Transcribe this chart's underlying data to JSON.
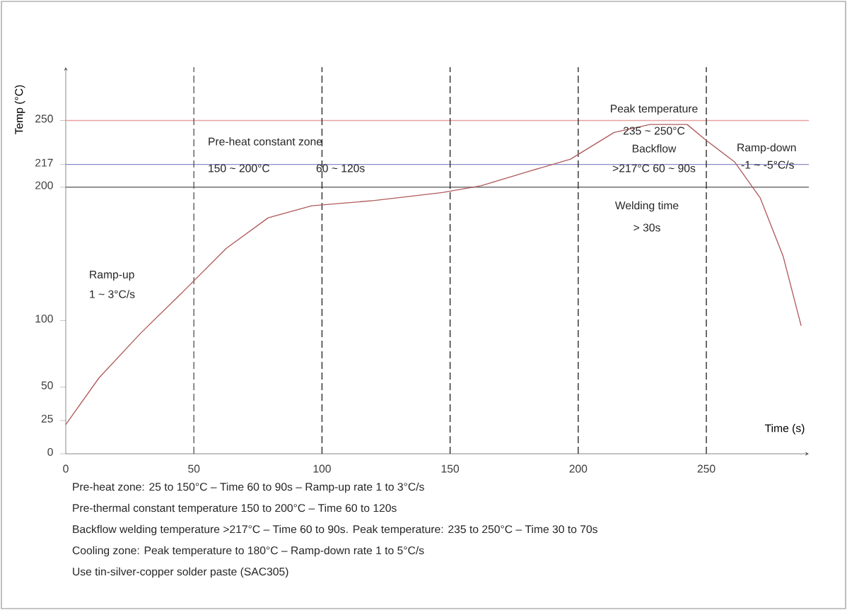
{
  "chart_data": {
    "type": "line",
    "xlabel": "Time (s)",
    "ylabel": "Temp (°C)",
    "xlim": [
      0,
      290
    ],
    "ylim": [
      0,
      290
    ],
    "xticks": [
      0,
      50,
      100,
      150,
      200,
      250
    ],
    "yticks": [
      0,
      25,
      50,
      100,
      200,
      217,
      250
    ],
    "grid": false,
    "marker": "none",
    "line_style": "solid",
    "x": [
      0,
      13,
      29.5,
      46,
      62.6,
      79,
      96,
      120.5,
      147,
      162,
      181,
      197,
      214,
      228,
      242.5,
      250,
      261,
      271,
      280,
      287
    ],
    "series": [
      {
        "color": "#b05a5a",
        "values": [
          22,
          57,
          91,
          122,
          154,
          177,
          186,
          190,
          196,
          201,
          212,
          221,
          241,
          247,
          247,
          235,
          219,
          192,
          148,
          96
        ]
      }
    ],
    "ref_lines": [
      {
        "axis": "y",
        "value": 250,
        "color": "#e8a0a0",
        "line_style": "solid"
      },
      {
        "axis": "y",
        "value": 217,
        "color": "#8a8ac8",
        "line_style": "solid"
      },
      {
        "axis": "y",
        "value": 200,
        "color": "#707070",
        "line_style": "solid"
      },
      {
        "axis": "x",
        "value": 50,
        "color": "#555555",
        "line_style": "dashed"
      },
      {
        "axis": "x",
        "value": 100,
        "color": "#222222",
        "line_style": "dashed"
      },
      {
        "axis": "x",
        "value": 150,
        "color": "#222222",
        "line_style": "dashed"
      },
      {
        "axis": "x",
        "value": 200,
        "color": "#222222",
        "line_style": "dashed"
      },
      {
        "axis": "x",
        "value": 250,
        "color": "#222222",
        "line_style": "dashed"
      }
    ],
    "annotations": [
      "Pre-heat constant zone",
      "150 ~ 200°C",
      "60 ~ 120s",
      "Ramp-up",
      "1 ~ 3°C/s",
      "Peak temperature",
      "235 ~ 250°C",
      "Backflow",
      ">217°C  60 ~ 90s",
      "Ramp-down",
      "-1 ~ -5°C/s",
      "Welding time",
      "> 30s",
      "Pre-heat zone: 25 to 150°C – Time 60 to 90s – Ramp-up rate 1 to 3°C/s",
      "Pre-thermal constant temperature 150 to 200°C – Time 60 to 120s",
      "Backflow welding temperature >217°C – Time 60 to 90s. Peak temperature: 235 to 250°C – Time 30 to 70s",
      "Cooling zone: Peak temperature to 180°C – Ramp-down rate 1 to 5°C/s",
      "Use tin-silver-copper solder paste (SAC305)"
    ]
  }
}
